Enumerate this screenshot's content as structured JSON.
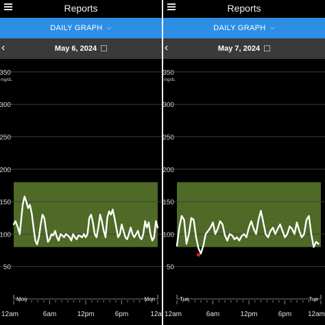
{
  "app": {
    "title": "Reports",
    "tab_label": "DAILY GRAPH",
    "menu_icon": "hamburger-menu-icon",
    "dropdown_icon": "chevron-down-icon",
    "back_icon": "chevron-left-icon",
    "calendar_icon": "calendar-icon"
  },
  "colors": {
    "tab_blue": "#2d8ee6",
    "target_range": "#4e6a26",
    "trace": "#ffffff",
    "low": "#e02020"
  },
  "chart_data": [
    {
      "type": "line",
      "date": "May 6, 2024",
      "ylabel": "mg/dL",
      "yticks": [
        50,
        100,
        150,
        200,
        250,
        300,
        350
      ],
      "ylim": [
        0,
        370
      ],
      "target_range": [
        80,
        180
      ],
      "xlim": [
        0,
        24
      ],
      "xticks": [
        {
          "hour": 0,
          "label": "12am"
        },
        {
          "hour": 6,
          "label": "6am"
        },
        {
          "hour": 12,
          "label": "12pm"
        },
        {
          "hour": 18,
          "label": "6pm"
        },
        {
          "hour": 24,
          "label": "12a"
        }
      ],
      "day_labels": [
        {
          "hour": 0,
          "label": "Mon"
        },
        {
          "hour": 24,
          "label": "Mon"
        }
      ],
      "series": [
        {
          "x": [
            0,
            0.3,
            0.7,
            1,
            1.2,
            1.5,
            1.8,
            2.1,
            2.4,
            2.7,
            3,
            3.3,
            3.6,
            3.9,
            4.2,
            4.5,
            4.8,
            5.1,
            5.4,
            5.7,
            6,
            6.3,
            6.6,
            6.9,
            7.2,
            7.5,
            7.8,
            8.1,
            8.4,
            8.7,
            9,
            9.3,
            9.6,
            9.9,
            10.2,
            10.5,
            10.8,
            11.1,
            11.4,
            11.7,
            12,
            12.3,
            12.6,
            12.9,
            13.2,
            13.5,
            13.8,
            14.1,
            14.4,
            14.7,
            15,
            15.3,
            15.6,
            15.9,
            16.2,
            16.5,
            16.8,
            17.1,
            17.4,
            17.7,
            18,
            18.3,
            18.6,
            18.9,
            19.2,
            19.5,
            19.8,
            20.1,
            20.4,
            20.7,
            21,
            21.3,
            21.6,
            21.9,
            22.2,
            22.5,
            22.8,
            23.1,
            23.4,
            23.7,
            24
          ],
          "y": [
            115,
            120,
            110,
            100,
            118,
            145,
            158,
            150,
            140,
            145,
            132,
            110,
            90,
            84,
            95,
            115,
            130,
            125,
            105,
            88,
            92,
            100,
            98,
            105,
            95,
            90,
            100,
            98,
            95,
            100,
            98,
            95,
            90,
            100,
            95,
            92,
            98,
            97,
            95,
            100,
            95,
            100,
            125,
            130,
            118,
            100,
            95,
            110,
            130,
            120,
            105,
            95,
            125,
            135,
            130,
            138,
            125,
            110,
            95,
            100,
            115,
            105,
            95,
            92,
            100,
            110,
            100,
            95,
            100,
            105,
            95,
            92,
            100,
            120,
            110,
            118,
            100,
            90,
            95,
            120,
            110
          ]
        }
      ]
    },
    {
      "type": "line",
      "date": "May 7, 2024",
      "ylabel": "mg/dL",
      "yticks": [
        50,
        100,
        150,
        200,
        250,
        300,
        350
      ],
      "ylim": [
        0,
        370
      ],
      "target_range": [
        80,
        180
      ],
      "xlim": [
        0,
        24
      ],
      "xticks": [
        {
          "hour": 0,
          "label": "12am"
        },
        {
          "hour": 6,
          "label": "6am"
        },
        {
          "hour": 12,
          "label": "12pm"
        },
        {
          "hour": 18,
          "label": "6pm"
        },
        {
          "hour": 24,
          "label": "12am"
        }
      ],
      "day_labels": [
        {
          "hour": 0,
          "label": "Tue"
        },
        {
          "hour": 24,
          "label": "Tue"
        }
      ],
      "series": [
        {
          "x": [
            0,
            0.4,
            0.8,
            1.2,
            1.6,
            2,
            2.4,
            2.8,
            3.2,
            3.6,
            4,
            4.4,
            4.8,
            5.2,
            5.6,
            6,
            6.4,
            6.8,
            7.2,
            7.6,
            8,
            8.4,
            8.8,
            9.2,
            9.6,
            10,
            10.4,
            10.8,
            11.2,
            11.6,
            12,
            12.4,
            12.8,
            13.2,
            13.6,
            14,
            14.4,
            14.8,
            15.2,
            15.6,
            16,
            16.4,
            16.8,
            17.2,
            17.6,
            18,
            18.4,
            18.8,
            19.2,
            19.6,
            20,
            20.4,
            20.8,
            21.2,
            21.6,
            22,
            22.4,
            22.8,
            23.2,
            23.6
          ],
          "y": [
            82,
            110,
            128,
            122,
            85,
            100,
            125,
            122,
            95,
            78,
            70,
            82,
            100,
            105,
            110,
            118,
            100,
            108,
            120,
            115,
            98,
            90,
            100,
            98,
            92,
            95,
            90,
            97,
            100,
            95,
            110,
            120,
            108,
            100,
            122,
            136,
            118,
            100,
            95,
            105,
            110,
            100,
            108,
            115,
            105,
            95,
            100,
            112,
            108,
            100,
            118,
            105,
            95,
            100,
            122,
            128,
            100,
            80,
            88,
            85
          ]
        }
      ],
      "low_marker": {
        "x": 3.6,
        "y": 68
      }
    }
  ]
}
